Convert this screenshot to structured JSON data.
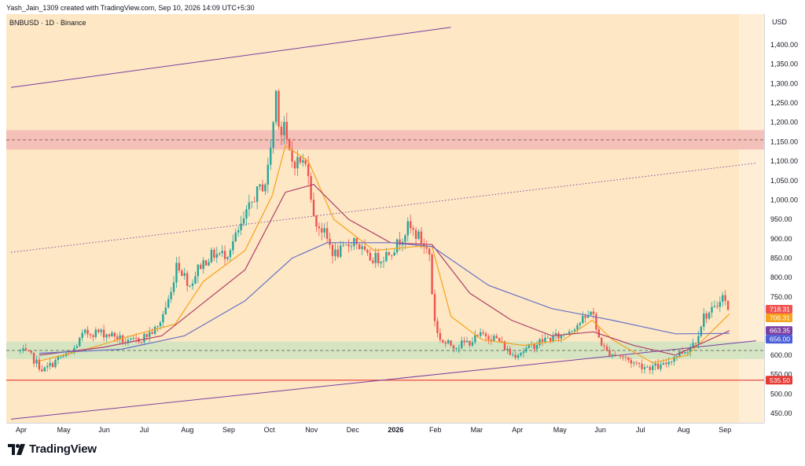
{
  "header": {
    "credit": "Yash_Jain_1309 created with TradingView.com, Sep 10, 2026 14:09 UTC+5:30",
    "symbol_line": "BNBUSD · 1D · Binance",
    "currency": "USD"
  },
  "brand": {
    "name": "TradingView"
  },
  "colors": {
    "plot_bg": "#fde7c4",
    "plot_bg_right": "#feeed6",
    "up_candle": "#26a69a",
    "down_candle": "#ef5350",
    "ema_short": "#f7a21b",
    "ma_mid": "#b0416b",
    "ma_long": "#6a72c8",
    "channel": "#7b3fa0",
    "resistance_zone": "#f2b8b5",
    "support_zone": "#cfe3c2",
    "support_line": "#e53935"
  },
  "chart_data": {
    "type": "candlestick",
    "symbol": "BNBUSD",
    "timeframe": "1D",
    "exchange": "Binance",
    "currency": "USD",
    "ylim": [
      440,
      1450
    ],
    "y_ticks": [
      "450.00",
      "500.00",
      "550.00",
      "600.00",
      "650.00",
      "700.00",
      "750.00",
      "800.00",
      "850.00",
      "900.00",
      "950.00",
      "1,000.00",
      "1,050.00",
      "1,100.00",
      "1,150.00",
      "1,200.00",
      "1,250.00",
      "1,300.00",
      "1,350.00",
      "1,400.00"
    ],
    "y_tick_values": [
      450,
      500,
      550,
      600,
      650,
      700,
      750,
      800,
      850,
      900,
      950,
      1000,
      1050,
      1100,
      1150,
      1200,
      1250,
      1300,
      1350,
      1400
    ],
    "x_labels": [
      "Apr",
      "May",
      "Jun",
      "Jul",
      "Aug",
      "Sep",
      "Oct",
      "Nov",
      "Dec",
      "2026",
      "Feb",
      "Mar",
      "Apr",
      "May",
      "Jun",
      "Jul",
      "Aug",
      "Sep"
    ],
    "price_path": [
      [
        "2025-04-01",
        610
      ],
      [
        "2025-04-08",
        600
      ],
      [
        "2025-04-18",
        560
      ],
      [
        "2025-05-01",
        595
      ],
      [
        "2025-05-08",
        600
      ],
      [
        "2025-05-18",
        655
      ],
      [
        "2025-05-28",
        660
      ],
      [
        "2025-06-10",
        650
      ],
      [
        "2025-06-20",
        630
      ],
      [
        "2025-07-01",
        645
      ],
      [
        "2025-07-12",
        670
      ],
      [
        "2025-07-22",
        760
      ],
      [
        "2025-07-26",
        840
      ],
      [
        "2025-08-05",
        780
      ],
      [
        "2025-08-12",
        830
      ],
      [
        "2025-08-22",
        860
      ],
      [
        "2025-09-01",
        860
      ],
      [
        "2025-09-12",
        930
      ],
      [
        "2025-09-22",
        1010
      ],
      [
        "2025-10-01",
        1050
      ],
      [
        "2025-10-06",
        1200
      ],
      [
        "2025-10-09",
        1320
      ],
      [
        "2025-10-11",
        1100
      ],
      [
        "2025-10-13",
        1250
      ],
      [
        "2025-10-15",
        1150
      ],
      [
        "2025-10-20",
        1100
      ],
      [
        "2025-10-27",
        1100
      ],
      [
        "2025-11-01",
        1080
      ],
      [
        "2025-11-05",
        950
      ],
      [
        "2025-11-12",
        920
      ],
      [
        "2025-11-20",
        860
      ],
      [
        "2025-11-27",
        870
      ],
      [
        "2025-12-05",
        900
      ],
      [
        "2025-12-15",
        850
      ],
      [
        "2025-12-25",
        850
      ],
      [
        "2026-01-05",
        880
      ],
      [
        "2026-01-14",
        930
      ],
      [
        "2026-01-22",
        905
      ],
      [
        "2026-01-30",
        860
      ],
      [
        "2026-02-01",
        760
      ],
      [
        "2026-02-04",
        660
      ],
      [
        "2026-02-10",
        630
      ],
      [
        "2026-02-20",
        625
      ],
      [
        "2026-03-01",
        635
      ],
      [
        "2026-03-12",
        655
      ],
      [
        "2026-03-22",
        640
      ],
      [
        "2026-04-01",
        600
      ],
      [
        "2026-04-12",
        615
      ],
      [
        "2026-04-25",
        640
      ],
      [
        "2026-05-08",
        650
      ],
      [
        "2026-05-18",
        675
      ],
      [
        "2026-05-28",
        700
      ],
      [
        "2026-05-31",
        730
      ],
      [
        "2026-06-03",
        660
      ],
      [
        "2026-06-10",
        610
      ],
      [
        "2026-06-20",
        600
      ],
      [
        "2026-07-01",
        580
      ],
      [
        "2026-07-10",
        570
      ],
      [
        "2026-07-22",
        570
      ],
      [
        "2026-08-01",
        600
      ],
      [
        "2026-08-10",
        615
      ],
      [
        "2026-08-16",
        640
      ],
      [
        "2026-08-22",
        700
      ],
      [
        "2026-08-31",
        720
      ],
      [
        "2026-09-04",
        760
      ],
      [
        "2026-09-07",
        735
      ],
      [
        "2026-09-10",
        718
      ]
    ],
    "moving_averages": [
      {
        "name": "",
        "color": "#f7a21b",
        "points": [
          [
            "2025-04-15",
            585
          ],
          [
            "2025-05-20",
            615
          ],
          [
            "2025-06-20",
            648
          ],
          [
            "2025-07-25",
            680
          ],
          [
            "2025-08-15",
            790
          ],
          [
            "2025-09-15",
            870
          ],
          [
            "2025-10-05",
            1010
          ],
          [
            "2025-10-15",
            1140
          ],
          [
            "2025-11-01",
            1100
          ],
          [
            "2025-11-20",
            950
          ],
          [
            "2025-12-20",
            870
          ],
          [
            "2026-01-20",
            880
          ],
          [
            "2026-02-01",
            880
          ],
          [
            "2026-02-15",
            700
          ],
          [
            "2026-03-10",
            640
          ],
          [
            "2026-04-10",
            625
          ],
          [
            "2026-05-10",
            640
          ],
          [
            "2026-05-31",
            690
          ],
          [
            "2026-06-15",
            640
          ],
          [
            "2026-07-15",
            580
          ],
          [
            "2026-08-10",
            600
          ],
          [
            "2026-09-10",
            706
          ]
        ]
      },
      {
        "name": "",
        "color": "#b0416b",
        "points": [
          [
            "2025-04-15",
            600
          ],
          [
            "2025-06-01",
            620
          ],
          [
            "2025-07-15",
            650
          ],
          [
            "2025-08-15",
            735
          ],
          [
            "2025-09-15",
            820
          ],
          [
            "2025-10-15",
            1020
          ],
          [
            "2025-11-05",
            1040
          ],
          [
            "2025-12-01",
            950
          ],
          [
            "2026-01-01",
            890
          ],
          [
            "2026-02-01",
            885
          ],
          [
            "2026-03-01",
            760
          ],
          [
            "2026-04-01",
            690
          ],
          [
            "2026-05-01",
            650
          ],
          [
            "2026-06-01",
            660
          ],
          [
            "2026-07-01",
            625
          ],
          [
            "2026-08-01",
            600
          ],
          [
            "2026-09-10",
            663
          ]
        ]
      },
      {
        "name": "",
        "color": "#6a72c8",
        "points": [
          [
            "2025-04-15",
            605
          ],
          [
            "2025-06-15",
            615
          ],
          [
            "2025-08-01",
            650
          ],
          [
            "2025-09-15",
            740
          ],
          [
            "2025-10-20",
            850
          ],
          [
            "2025-11-15",
            890
          ],
          [
            "2026-01-01",
            890
          ],
          [
            "2026-02-01",
            880
          ],
          [
            "2026-03-15",
            780
          ],
          [
            "2026-05-01",
            720
          ],
          [
            "2026-06-15",
            690
          ],
          [
            "2026-08-01",
            655
          ],
          [
            "2026-09-10",
            656
          ]
        ]
      }
    ],
    "horizontal_levels": [
      {
        "value": 535.5,
        "label": "535.50",
        "color": "#e53935"
      },
      {
        "value": 1155,
        "style": "dashed",
        "color": "#7a5a5a"
      },
      {
        "value": 612,
        "style": "dashed",
        "color": "#4a5a4a"
      }
    ],
    "zones": [
      {
        "low": 1130,
        "high": 1180,
        "color": "#f2b8b5"
      },
      {
        "low": 590,
        "high": 635,
        "color": "#cfe3c2"
      }
    ],
    "trend_lines": [
      {
        "from": [
          "2025-03-25",
          1290
        ],
        "to": [
          "2026-02-15",
          1445
        ],
        "color": "#7b3fa0"
      },
      {
        "from": [
          "2025-03-25",
          865
        ],
        "to": [
          "2026-09-30",
          1095
        ],
        "color": "#7b3fa0",
        "style": "dotted"
      },
      {
        "from": [
          "2025-03-25",
          435
        ],
        "to": [
          "2026-09-30",
          637
        ],
        "color": "#7b3fa0"
      }
    ],
    "price_badges": [
      {
        "label": "718.31",
        "value": 718.31,
        "color": "#ef5350"
      },
      {
        "label": "706.31",
        "value": 706.31,
        "color": "#f7a21b"
      },
      {
        "label": "663.35",
        "value": 663.35,
        "color": "#7b3fa0"
      },
      {
        "label": "656.00",
        "value": 656.0,
        "color": "#4a5cd8"
      },
      {
        "label": "535.50",
        "value": 535.5,
        "color": "#e53935"
      }
    ],
    "last_price": 718.31
  }
}
